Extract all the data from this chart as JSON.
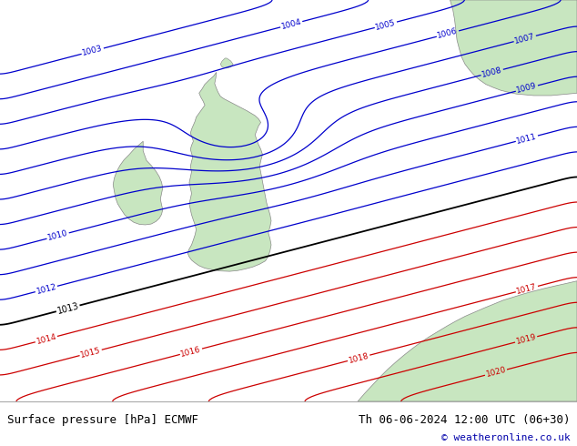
{
  "title_left": "Surface pressure [hPa] ECMWF",
  "title_right": "Th 06-06-2024 12:00 UTC (06+30)",
  "copyright": "© weatheronline.co.uk",
  "bg_color": "#d4d4d4",
  "land_color": "#c8e6c0",
  "footer_bg": "#e0e0e0",
  "blue_color": "#0000cc",
  "red_color": "#cc0000",
  "black_color": "#000000",
  "coast_color": "#888888",
  "figsize": [
    6.34,
    4.9
  ],
  "dpi": 100,
  "levels_blue": [
    1003,
    1004,
    1005,
    1006,
    1007,
    1008,
    1009,
    1010,
    1011,
    1012
  ],
  "levels_black": [
    1013
  ],
  "levels_red": [
    1014,
    1015,
    1016,
    1017,
    1018,
    1019,
    1020
  ]
}
